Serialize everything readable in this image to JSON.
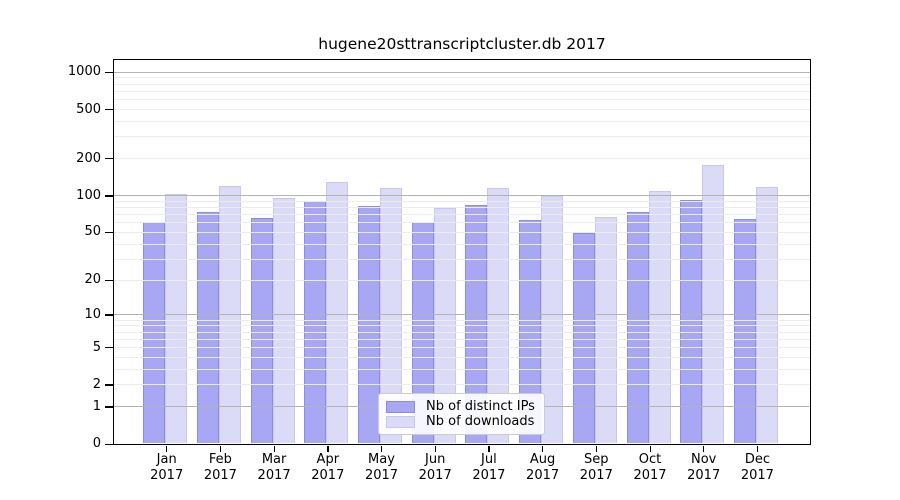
{
  "chart_data": {
    "type": "bar",
    "title": "hugene20sttranscriptcluster.db 2017",
    "categories": [
      "Jan",
      "Feb",
      "Mar",
      "Apr",
      "May",
      "Jun",
      "Jul",
      "Aug",
      "Sep",
      "Oct",
      "Nov",
      "Dec"
    ],
    "x_tick_second_line": "2017",
    "series": [
      {
        "name": "Nb of distinct IPs",
        "color": "#a7a7f4",
        "edge_color": "#8d8de0",
        "values": [
          60,
          73,
          65,
          89,
          81,
          60,
          83,
          63,
          49,
          73,
          91,
          64
        ]
      },
      {
        "name": "Nb of downloads",
        "color": "#dbdbf8",
        "edge_color": "#c7c7ef",
        "values": [
          103,
          118,
          95,
          129,
          115,
          79,
          115,
          98,
          66,
          108,
          177,
          116
        ]
      }
    ],
    "y_axis": {
      "scale": "log1p",
      "ticks": [
        0,
        1,
        2,
        5,
        10,
        20,
        50,
        100,
        200,
        500,
        1000
      ]
    },
    "grid": {
      "on": true,
      "major_at": [
        1,
        10,
        100,
        1000
      ],
      "major_color": "#b3b3b3",
      "minor_color": "#ececec"
    },
    "legend": {
      "position": "lower center",
      "entries": [
        "Nb of distinct IPs",
        "Nb of downloads"
      ]
    },
    "axis_color": "#000000",
    "background_color": "#ffffff"
  }
}
